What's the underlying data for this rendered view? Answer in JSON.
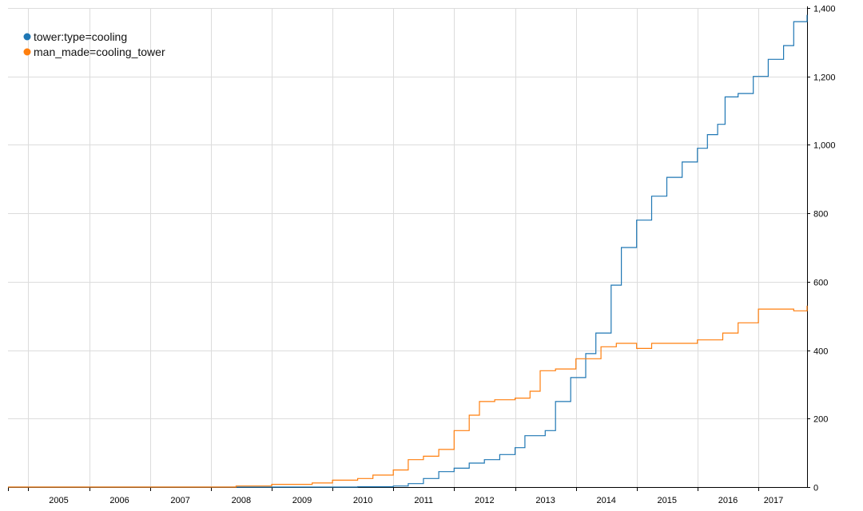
{
  "chart_data": {
    "type": "line",
    "title": "",
    "xlabel": "",
    "ylabel": "",
    "x_domain": [
      "2004-09-01",
      "2017-10-20"
    ],
    "ylim": [
      0,
      1400
    ],
    "x_ticks": [
      "2005",
      "2006",
      "2007",
      "2008",
      "2009",
      "2010",
      "2011",
      "2012",
      "2013",
      "2014",
      "2015",
      "2016",
      "2017"
    ],
    "y_ticks": [
      {
        "value": 0,
        "label": "0"
      },
      {
        "value": 200,
        "label": "200"
      },
      {
        "value": 400,
        "label": "400"
      },
      {
        "value": 600,
        "label": "600"
      },
      {
        "value": 800,
        "label": "800"
      },
      {
        "value": 1000,
        "label": "1,000"
      },
      {
        "value": 1200,
        "label": "1,200"
      },
      {
        "value": 1400,
        "label": "1,400"
      }
    ],
    "grid": true,
    "y_axis_position": "right",
    "legend_position": "top-left",
    "series": [
      {
        "name": "tower:type=cooling",
        "color": "#1f77b4",
        "points": [
          [
            "2004-09-01",
            0
          ],
          [
            "2010-01-01",
            0
          ],
          [
            "2010-06-01",
            1
          ],
          [
            "2011-01-01",
            3
          ],
          [
            "2011-04-01",
            10
          ],
          [
            "2011-07-01",
            25
          ],
          [
            "2011-10-01",
            45
          ],
          [
            "2012-01-01",
            55
          ],
          [
            "2012-04-01",
            70
          ],
          [
            "2012-07-01",
            80
          ],
          [
            "2012-10-01",
            95
          ],
          [
            "2013-01-01",
            115
          ],
          [
            "2013-03-01",
            150
          ],
          [
            "2013-07-01",
            165
          ],
          [
            "2013-09-01",
            250
          ],
          [
            "2013-12-01",
            320
          ],
          [
            "2014-03-01",
            390
          ],
          [
            "2014-05-01",
            450
          ],
          [
            "2014-08-01",
            590
          ],
          [
            "2014-10-01",
            700
          ],
          [
            "2015-01-01",
            780
          ],
          [
            "2015-04-01",
            850
          ],
          [
            "2015-07-01",
            905
          ],
          [
            "2015-10-01",
            950
          ],
          [
            "2016-01-01",
            990
          ],
          [
            "2016-03-01",
            1030
          ],
          [
            "2016-05-01",
            1060
          ],
          [
            "2016-06-15",
            1140
          ],
          [
            "2016-09-01",
            1150
          ],
          [
            "2016-12-01",
            1200
          ],
          [
            "2017-03-01",
            1250
          ],
          [
            "2017-06-01",
            1290
          ],
          [
            "2017-08-01",
            1360
          ],
          [
            "2017-10-20",
            1380
          ]
        ]
      },
      {
        "name": "man_made=cooling_tower",
        "color": "#ff7f0e",
        "points": [
          [
            "2004-09-01",
            0
          ],
          [
            "2007-06-01",
            0
          ],
          [
            "2008-06-01",
            3
          ],
          [
            "2009-01-01",
            8
          ],
          [
            "2009-09-01",
            12
          ],
          [
            "2010-01-01",
            20
          ],
          [
            "2010-06-01",
            25
          ],
          [
            "2010-09-01",
            35
          ],
          [
            "2011-01-01",
            50
          ],
          [
            "2011-04-01",
            80
          ],
          [
            "2011-07-01",
            90
          ],
          [
            "2011-10-01",
            110
          ],
          [
            "2012-01-01",
            165
          ],
          [
            "2012-04-01",
            210
          ],
          [
            "2012-06-01",
            250
          ],
          [
            "2012-09-01",
            255
          ],
          [
            "2013-01-01",
            260
          ],
          [
            "2013-04-01",
            280
          ],
          [
            "2013-06-01",
            340
          ],
          [
            "2013-09-01",
            345
          ],
          [
            "2014-01-01",
            375
          ],
          [
            "2014-06-01",
            410
          ],
          [
            "2014-09-01",
            420
          ],
          [
            "2015-01-01",
            405
          ],
          [
            "2015-04-01",
            420
          ],
          [
            "2015-09-01",
            420
          ],
          [
            "2016-01-01",
            430
          ],
          [
            "2016-06-01",
            450
          ],
          [
            "2016-09-01",
            480
          ],
          [
            "2017-01-01",
            520
          ],
          [
            "2017-06-01",
            520
          ],
          [
            "2017-08-01",
            515
          ],
          [
            "2017-10-20",
            530
          ]
        ]
      }
    ]
  }
}
